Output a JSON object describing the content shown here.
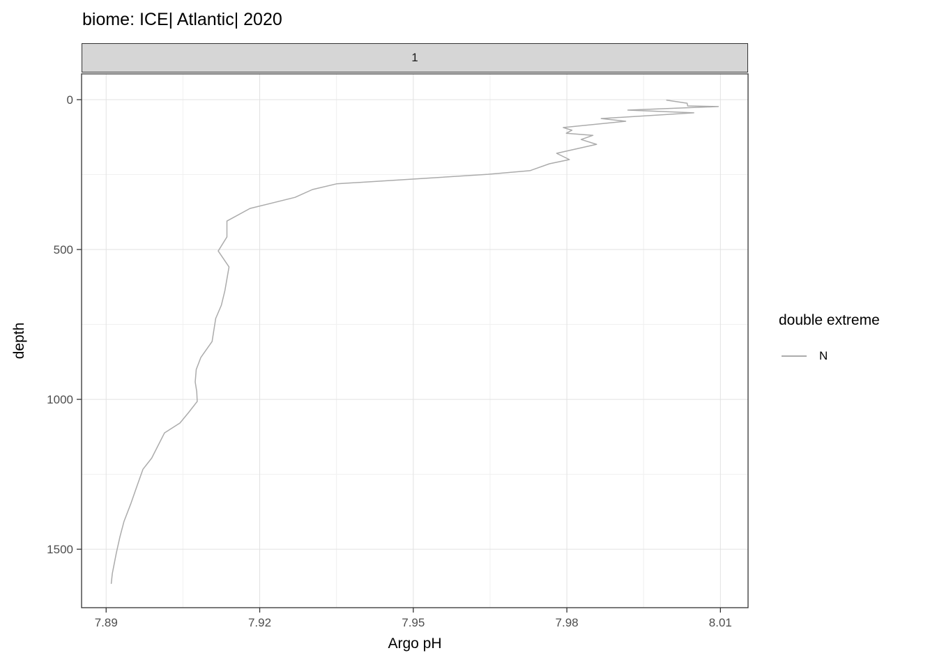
{
  "title": "biome: ICE| Atlantic| 2020",
  "facet": {
    "label": "1"
  },
  "axes": {
    "x_label": "Argo pH",
    "y_label": "depth"
  },
  "legend": {
    "title": "double extreme",
    "entries": [
      {
        "label": "N",
        "color": "#ababab"
      }
    ]
  },
  "colors": {
    "line": "#ababab",
    "panel_border": "#333333",
    "strip_fill": "#d6d6d6",
    "grid_major": "#e2e2e2",
    "grid_minor": "#f0f0f0",
    "tick_text": "#4d4d4d",
    "tick_mark": "#333333"
  },
  "chart_data": {
    "type": "line",
    "title": "biome: ICE| Atlantic| 2020",
    "xlabel": "Argo pH",
    "ylabel": "depth",
    "facet_label": "1",
    "grid": "on",
    "legend_position": "right",
    "y_reversed": true,
    "xlim": [
      7.8852,
      8.0154
    ],
    "ylim": [
      -86,
      1695
    ],
    "x_ticks": [
      7.89,
      7.92,
      7.95,
      7.98,
      8.01
    ],
    "x_tick_labels": [
      "7.89",
      "7.92",
      "7.95",
      "7.98",
      "8.01"
    ],
    "x_minor": [
      7.905,
      7.935,
      7.965,
      7.995
    ],
    "y_ticks": [
      0,
      500,
      1000,
      1500
    ],
    "y_tick_labels": [
      "0",
      "500",
      "1000",
      "1500"
    ],
    "y_minor": [
      250,
      750,
      1250
    ],
    "series": [
      {
        "name": "N",
        "color": "#ababab",
        "points": [
          [
            7.9995,
            2
          ],
          [
            8.0035,
            12
          ],
          [
            8.0036,
            21
          ],
          [
            8.0096,
            23
          ],
          [
            7.9919,
            35
          ],
          [
            8.0048,
            44
          ],
          [
            7.9867,
            63
          ],
          [
            7.9915,
            72
          ],
          [
            7.9793,
            93
          ],
          [
            7.981,
            102
          ],
          [
            7.9799,
            112
          ],
          [
            7.9851,
            119
          ],
          [
            7.9828,
            133
          ],
          [
            7.9858,
            149
          ],
          [
            7.978,
            179
          ],
          [
            7.9805,
            200
          ],
          [
            7.9766,
            214
          ],
          [
            7.9728,
            237
          ],
          [
            7.9646,
            249
          ],
          [
            7.9499,
            265
          ],
          [
            7.935,
            281
          ],
          [
            7.9303,
            300
          ],
          [
            7.9269,
            326
          ],
          [
            7.9181,
            363
          ],
          [
            7.9136,
            405
          ],
          [
            7.9136,
            458
          ],
          [
            7.9119,
            505
          ],
          [
            7.914,
            558
          ],
          [
            7.9132,
            637
          ],
          [
            7.9125,
            686
          ],
          [
            7.9114,
            730
          ],
          [
            7.9107,
            807
          ],
          [
            7.9085,
            860
          ],
          [
            7.9076,
            900
          ],
          [
            7.9074,
            942
          ],
          [
            7.9077,
            974
          ],
          [
            7.9078,
            1007
          ],
          [
            7.9061,
            1044
          ],
          [
            7.9044,
            1079
          ],
          [
            7.9014,
            1112
          ],
          [
            7.8989,
            1196
          ],
          [
            7.8972,
            1233
          ],
          [
            7.8959,
            1295
          ],
          [
            7.8948,
            1349
          ],
          [
            7.8935,
            1407
          ],
          [
            7.8927,
            1458
          ],
          [
            7.892,
            1512
          ],
          [
            7.8912,
            1581
          ],
          [
            7.891,
            1614
          ]
        ]
      }
    ]
  }
}
